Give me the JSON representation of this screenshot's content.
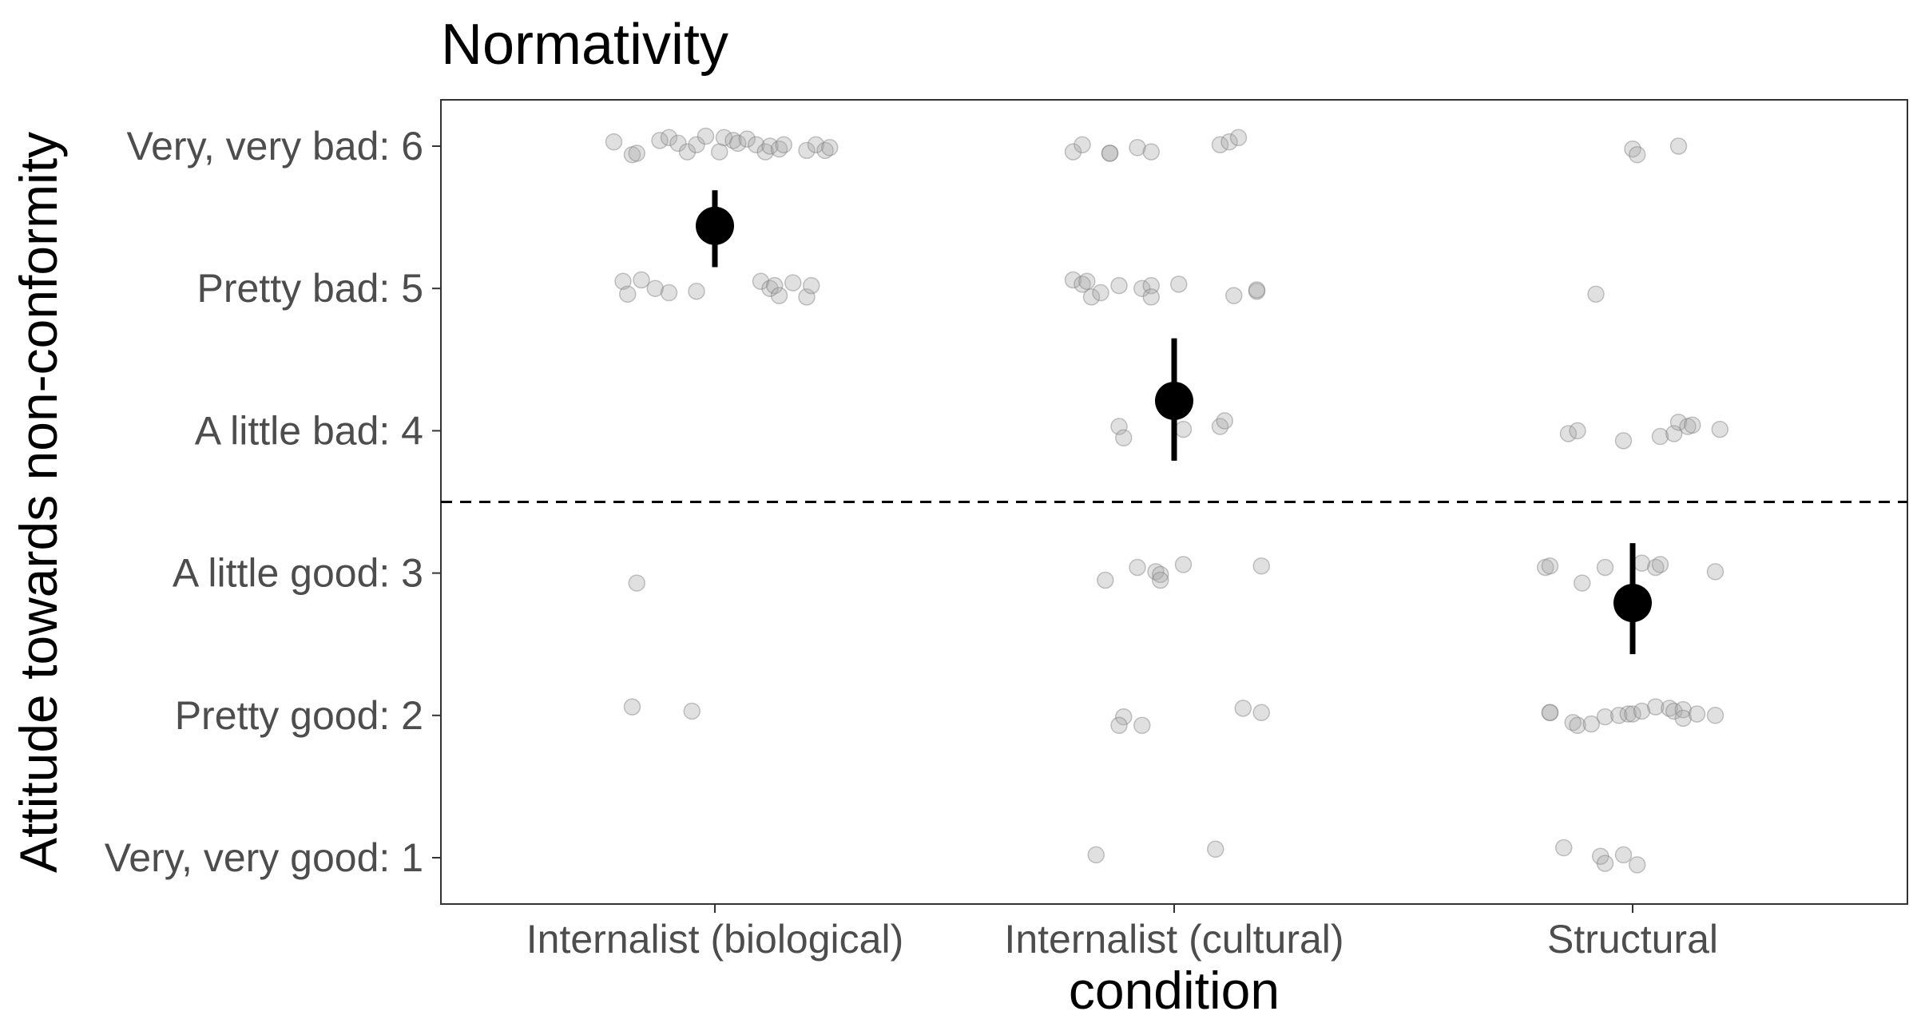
{
  "chart_data": {
    "type": "scatter",
    "title": "Normativity",
    "xlabel": "condition",
    "ylabel": "Attitude towards non-conformity",
    "categories": [
      "Internalist (biological)",
      "Internalist (cultural)",
      "Structural"
    ],
    "y_ticks": [
      {
        "value": 6,
        "label": "Very, very bad: 6"
      },
      {
        "value": 5,
        "label": "Pretty bad: 5"
      },
      {
        "value": 4,
        "label": "A little bad: 4"
      },
      {
        "value": 3,
        "label": "A little good: 3"
      },
      {
        "value": 2,
        "label": "Pretty good: 2"
      },
      {
        "value": 1,
        "label": "Very, very good: 1"
      }
    ],
    "ylim": [
      0.7,
      6.3
    ],
    "reference_line": {
      "y": 3.5,
      "style": "dashed"
    },
    "grid": false,
    "summary": [
      {
        "category": "Internalist (biological)",
        "mean": 5.44,
        "ci_low": 5.15,
        "ci_high": 5.69
      },
      {
        "category": "Internalist (cultural)",
        "mean": 4.21,
        "ci_low": 3.79,
        "ci_high": 4.65
      },
      {
        "category": "Structural",
        "mean": 2.79,
        "ci_low": 2.43,
        "ci_high": 3.21
      }
    ],
    "points": [
      {
        "category": "Internalist (biological)",
        "jitter": [
          [
            -0.22,
            6.03
          ],
          [
            -0.18,
            5.94
          ],
          [
            -0.17,
            5.95
          ],
          [
            -0.12,
            6.04
          ],
          [
            -0.1,
            6.06
          ],
          [
            -0.08,
            6.02
          ],
          [
            -0.06,
            5.96
          ],
          [
            -0.04,
            6.01
          ],
          [
            -0.02,
            6.07
          ],
          [
            0.01,
            5.96
          ],
          [
            0.02,
            6.06
          ],
          [
            0.04,
            6.04
          ],
          [
            0.05,
            6.02
          ],
          [
            0.07,
            6.05
          ],
          [
            0.09,
            6.01
          ],
          [
            0.11,
            5.96
          ],
          [
            0.12,
            6.0
          ],
          [
            0.14,
            5.98
          ],
          [
            0.15,
            6.01
          ],
          [
            0.2,
            5.97
          ],
          [
            0.22,
            6.01
          ],
          [
            0.24,
            5.97
          ],
          [
            0.25,
            5.99
          ],
          [
            -0.2,
            5.05
          ],
          [
            -0.19,
            4.96
          ],
          [
            -0.16,
            5.06
          ],
          [
            -0.13,
            5.0
          ],
          [
            -0.1,
            4.97
          ],
          [
            -0.04,
            4.98
          ],
          [
            0.1,
            5.05
          ],
          [
            0.12,
            5.0
          ],
          [
            0.13,
            5.02
          ],
          [
            0.14,
            4.95
          ],
          [
            0.17,
            5.04
          ],
          [
            0.2,
            4.94
          ],
          [
            0.21,
            5.02
          ],
          [
            -0.17,
            2.93
          ],
          [
            -0.18,
            2.06
          ],
          [
            -0.05,
            2.03
          ]
        ]
      },
      {
        "category": "Internalist (cultural)",
        "jitter": [
          [
            -0.22,
            5.96
          ],
          [
            -0.2,
            6.01
          ],
          [
            -0.14,
            5.95
          ],
          [
            -0.14,
            5.95
          ],
          [
            -0.08,
            5.99
          ],
          [
            -0.05,
            5.96
          ],
          [
            0.1,
            6.01
          ],
          [
            0.12,
            6.03
          ],
          [
            0.14,
            6.06
          ],
          [
            -0.22,
            5.06
          ],
          [
            -0.2,
            5.03
          ],
          [
            -0.19,
            5.05
          ],
          [
            -0.18,
            4.94
          ],
          [
            -0.16,
            4.97
          ],
          [
            -0.12,
            5.02
          ],
          [
            -0.07,
            5.0
          ],
          [
            -0.05,
            5.02
          ],
          [
            -0.05,
            4.94
          ],
          [
            0.01,
            5.03
          ],
          [
            0.13,
            4.95
          ],
          [
            0.18,
            4.98
          ],
          [
            0.18,
            4.99
          ],
          [
            -0.12,
            4.03
          ],
          [
            -0.11,
            3.95
          ],
          [
            0.02,
            4.01
          ],
          [
            0.1,
            4.03
          ],
          [
            0.11,
            4.07
          ],
          [
            -0.15,
            2.95
          ],
          [
            -0.08,
            3.04
          ],
          [
            -0.04,
            3.01
          ],
          [
            -0.03,
            2.99
          ],
          [
            -0.03,
            2.95
          ],
          [
            0.02,
            3.06
          ],
          [
            0.19,
            3.05
          ],
          [
            -0.17,
            1.02
          ],
          [
            0.09,
            1.06
          ],
          [
            -0.11,
            1.99
          ],
          [
            -0.12,
            1.93
          ],
          [
            -0.07,
            1.93
          ],
          [
            0.15,
            2.05
          ],
          [
            0.19,
            2.02
          ]
        ]
      },
      {
        "category": "Structural",
        "jitter": [
          [
            0.0,
            5.98
          ],
          [
            0.01,
            5.94
          ],
          [
            0.1,
            6.0
          ],
          [
            -0.08,
            4.96
          ],
          [
            -0.14,
            3.98
          ],
          [
            -0.12,
            4.0
          ],
          [
            -0.02,
            3.93
          ],
          [
            0.06,
            3.96
          ],
          [
            0.09,
            3.98
          ],
          [
            0.1,
            4.06
          ],
          [
            0.12,
            4.03
          ],
          [
            0.13,
            4.04
          ],
          [
            0.19,
            4.01
          ],
          [
            -0.19,
            3.04
          ],
          [
            -0.18,
            3.05
          ],
          [
            -0.11,
            2.93
          ],
          [
            -0.06,
            3.04
          ],
          [
            0.02,
            3.07
          ],
          [
            0.05,
            3.04
          ],
          [
            0.06,
            3.06
          ],
          [
            0.18,
            3.01
          ],
          [
            -0.18,
            2.02
          ],
          [
            -0.18,
            2.02
          ],
          [
            -0.13,
            1.95
          ],
          [
            -0.12,
            1.93
          ],
          [
            -0.09,
            1.94
          ],
          [
            -0.06,
            1.99
          ],
          [
            -0.03,
            2.0
          ],
          [
            -0.01,
            2.01
          ],
          [
            0.0,
            2.01
          ],
          [
            0.02,
            2.03
          ],
          [
            0.05,
            2.06
          ],
          [
            0.08,
            2.05
          ],
          [
            0.09,
            2.03
          ],
          [
            0.11,
            2.04
          ],
          [
            0.11,
            1.98
          ],
          [
            0.14,
            2.01
          ],
          [
            0.18,
            2.0
          ],
          [
            -0.15,
            1.07
          ],
          [
            -0.07,
            1.01
          ],
          [
            -0.06,
            0.96
          ],
          [
            -0.02,
            1.02
          ],
          [
            0.01,
            0.95
          ]
        ]
      }
    ],
    "colors": {
      "points": "#a6a6a6",
      "summary": "#000000",
      "text": "#000000",
      "tick": "#4d4d4d"
    }
  }
}
